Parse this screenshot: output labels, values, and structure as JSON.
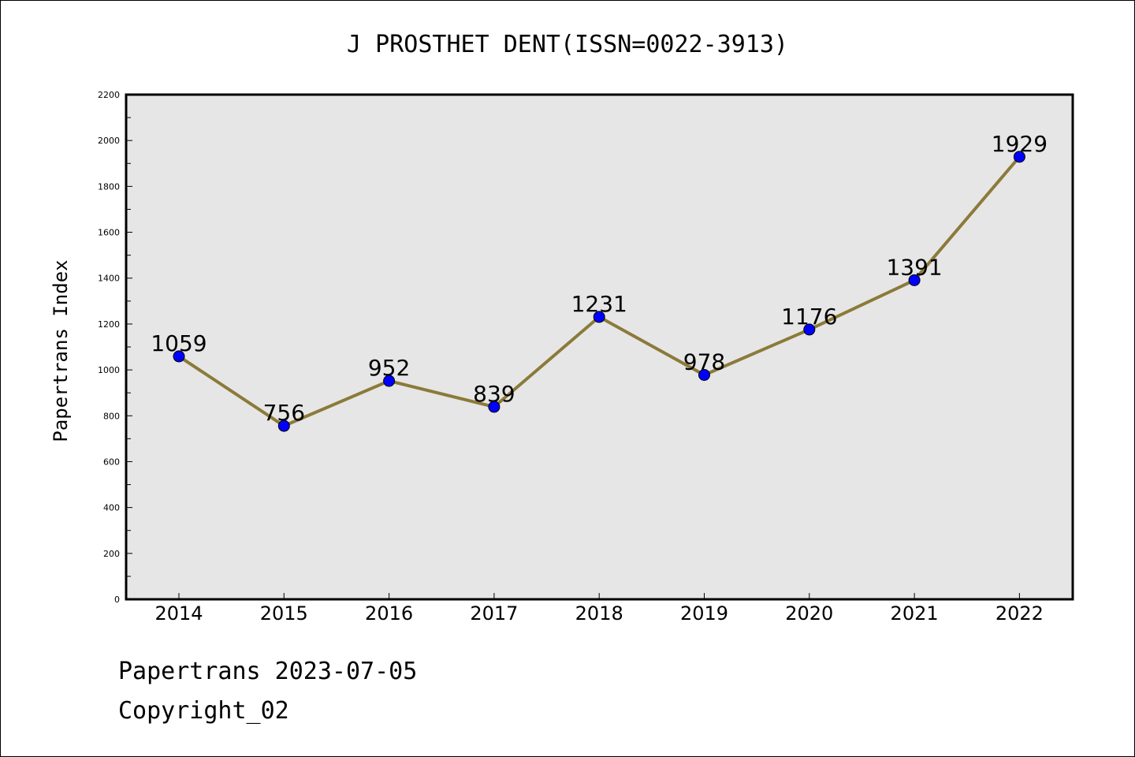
{
  "chart_data": {
    "type": "line",
    "title": "J PROSTHET DENT(ISSN=0022-3913)",
    "xlabel": "",
    "ylabel": "Papertrans Index",
    "categories": [
      "2014",
      "2015",
      "2016",
      "2017",
      "2018",
      "2019",
      "2020",
      "2021",
      "2022"
    ],
    "series": [
      {
        "values": [
          1059,
          756,
          952,
          839,
          1231,
          978,
          1176,
          1391,
          1929
        ]
      }
    ],
    "ylim": [
      0,
      2200
    ],
    "yticks": [
      0,
      200,
      400,
      600,
      800,
      1000,
      1200,
      1400,
      1600,
      1800,
      2000,
      2200
    ],
    "grid": false,
    "legend": "none",
    "colors": {
      "line": "#8b7a3a",
      "marker": "#0000ff",
      "plot_background": "#e6e6e6"
    }
  },
  "footer": {
    "line1": "Papertrans 2023-07-05",
    "line2": "Copyright_02"
  }
}
